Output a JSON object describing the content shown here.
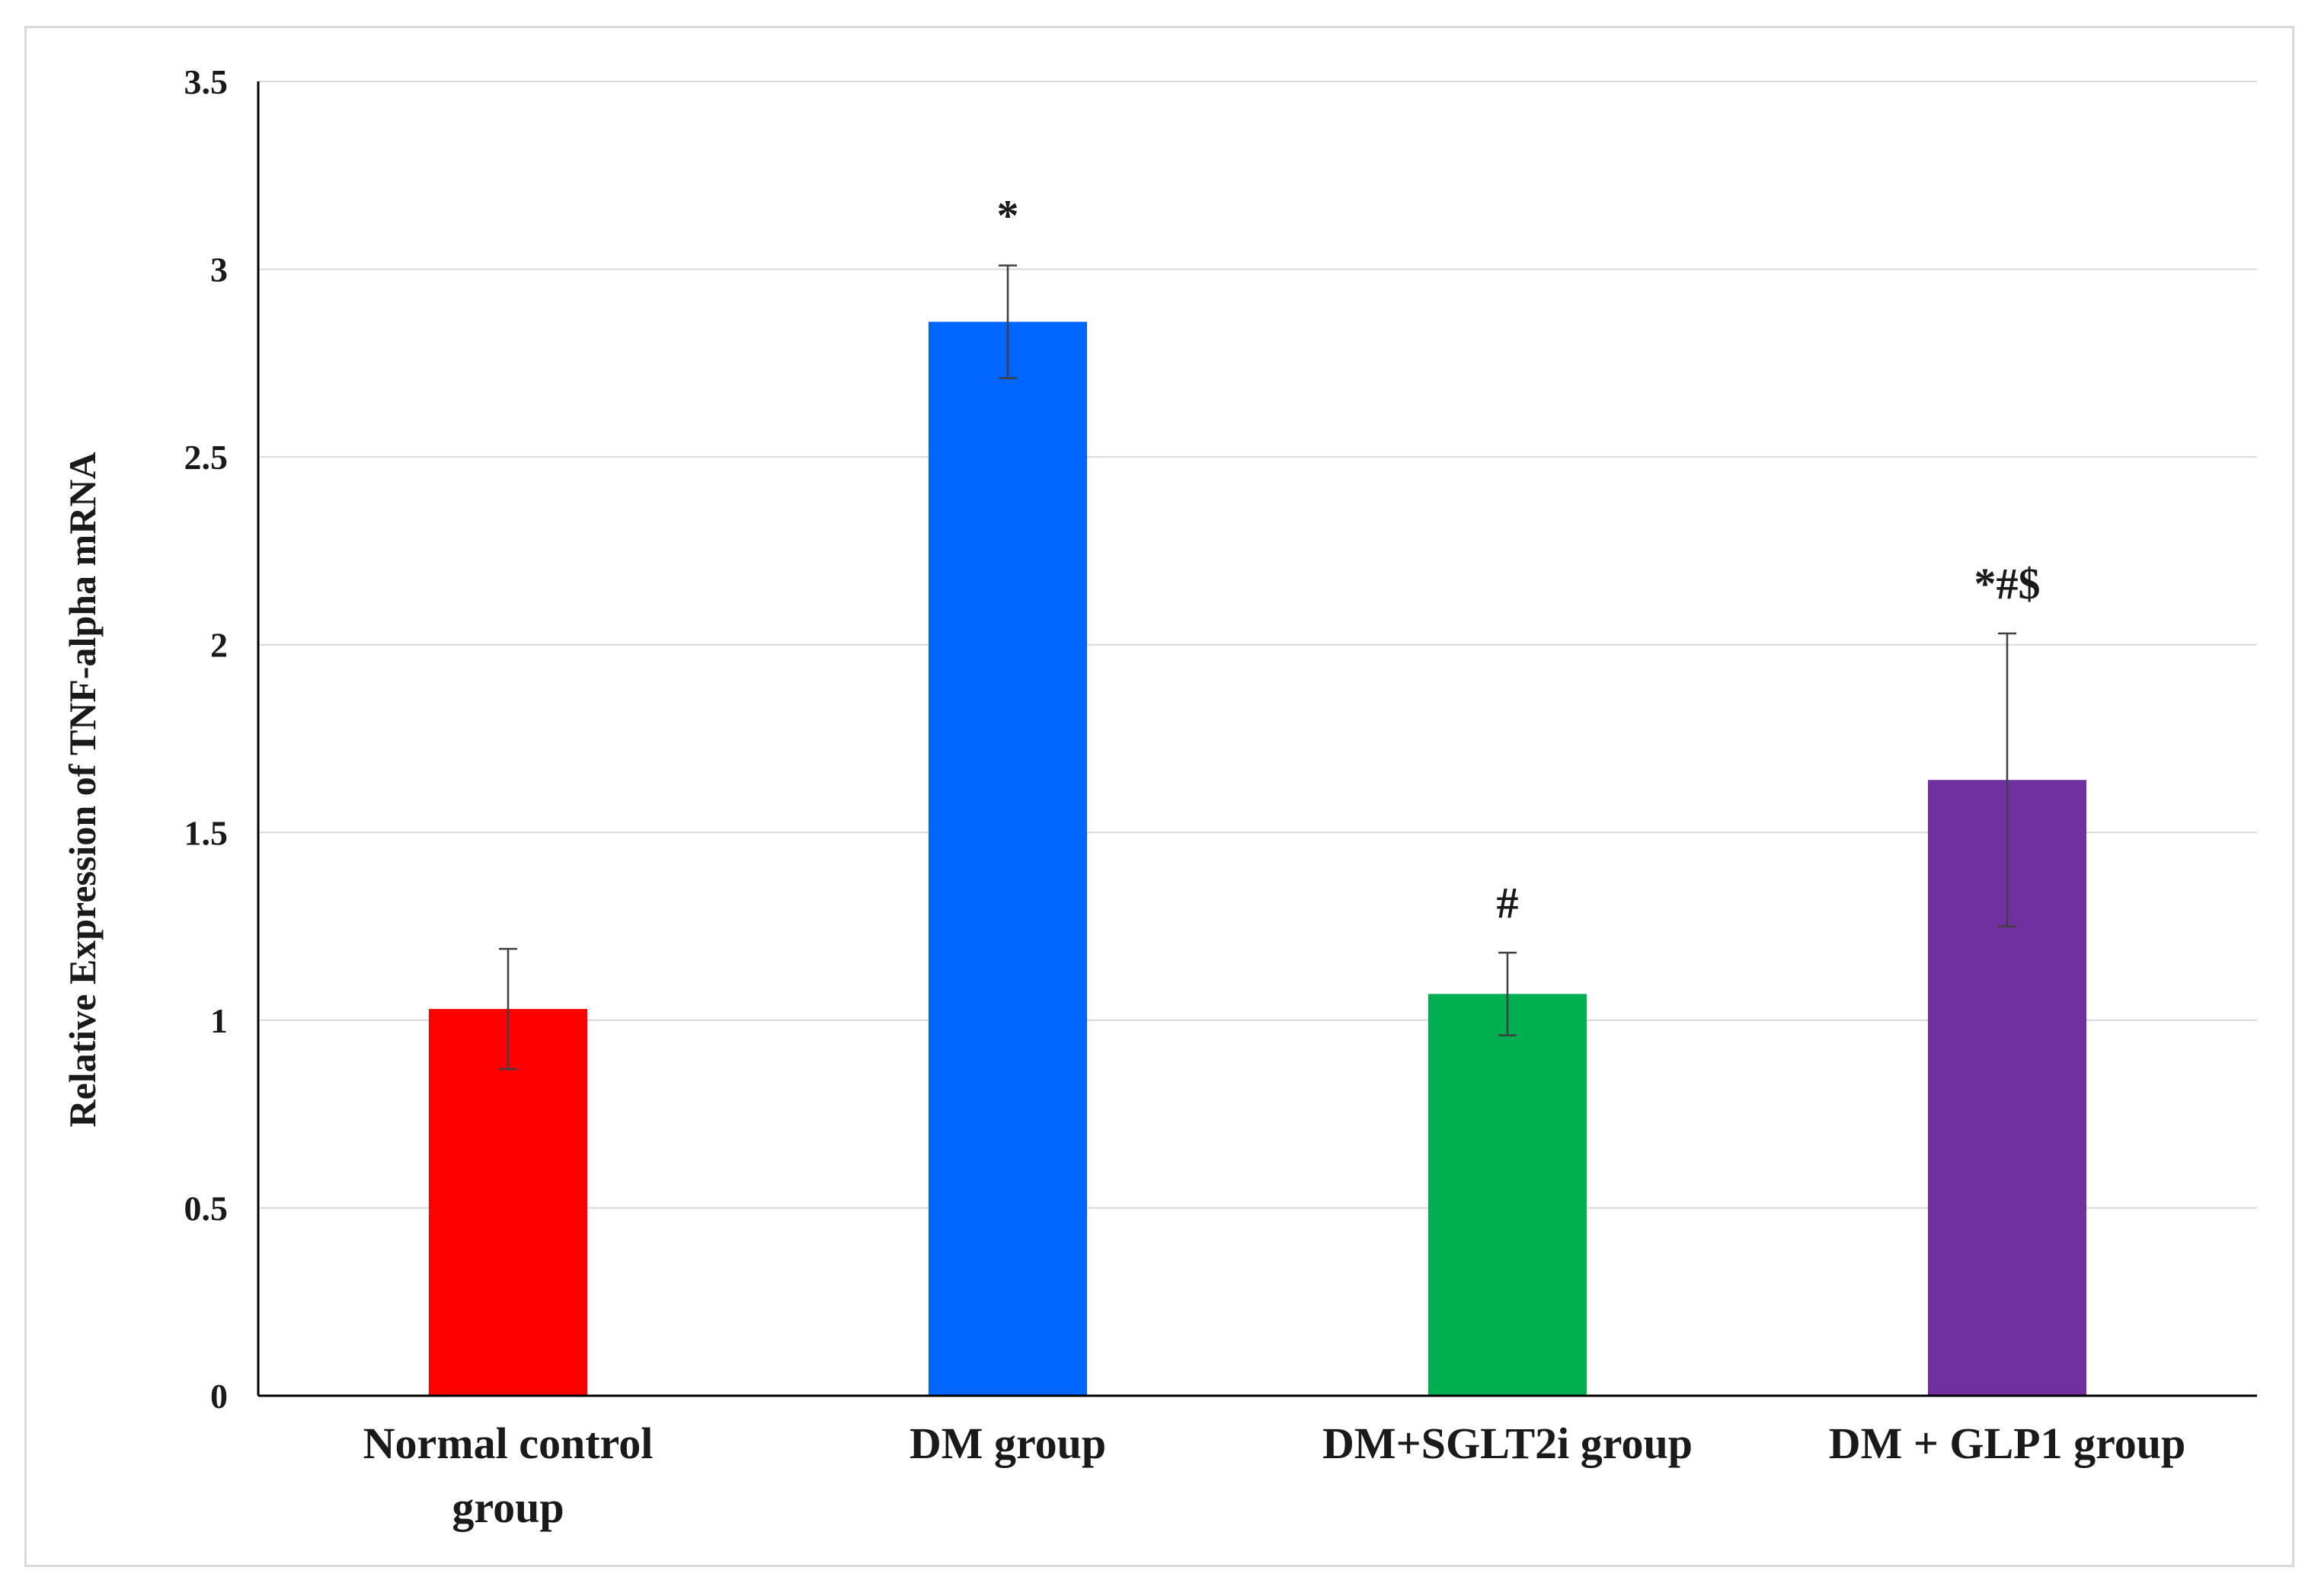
{
  "chart_data": {
    "type": "bar",
    "title": "",
    "xlabel": "",
    "ylabel": "Relative Expression of TNF-alpha mRNA",
    "ylim": [
      0,
      3.5
    ],
    "yticks": [
      "0",
      "0.5",
      "1",
      "1.5",
      "2",
      "2.5",
      "3",
      "3.5"
    ],
    "grid": true,
    "legend": "none",
    "categories": [
      [
        "Normal control",
        "group"
      ],
      [
        "DM group"
      ],
      [
        "DM+SGLT2i group"
      ],
      [
        "DM + GLP1 group"
      ]
    ],
    "values": [
      1.03,
      2.86,
      1.07,
      1.64
    ],
    "errors": [
      0.16,
      0.15,
      0.11,
      0.39
    ],
    "annotations": [
      "",
      "*",
      "#",
      "*#$"
    ],
    "colors": [
      "#ff0000",
      "#0066ff",
      "#00b050",
      "#7030a0"
    ]
  }
}
